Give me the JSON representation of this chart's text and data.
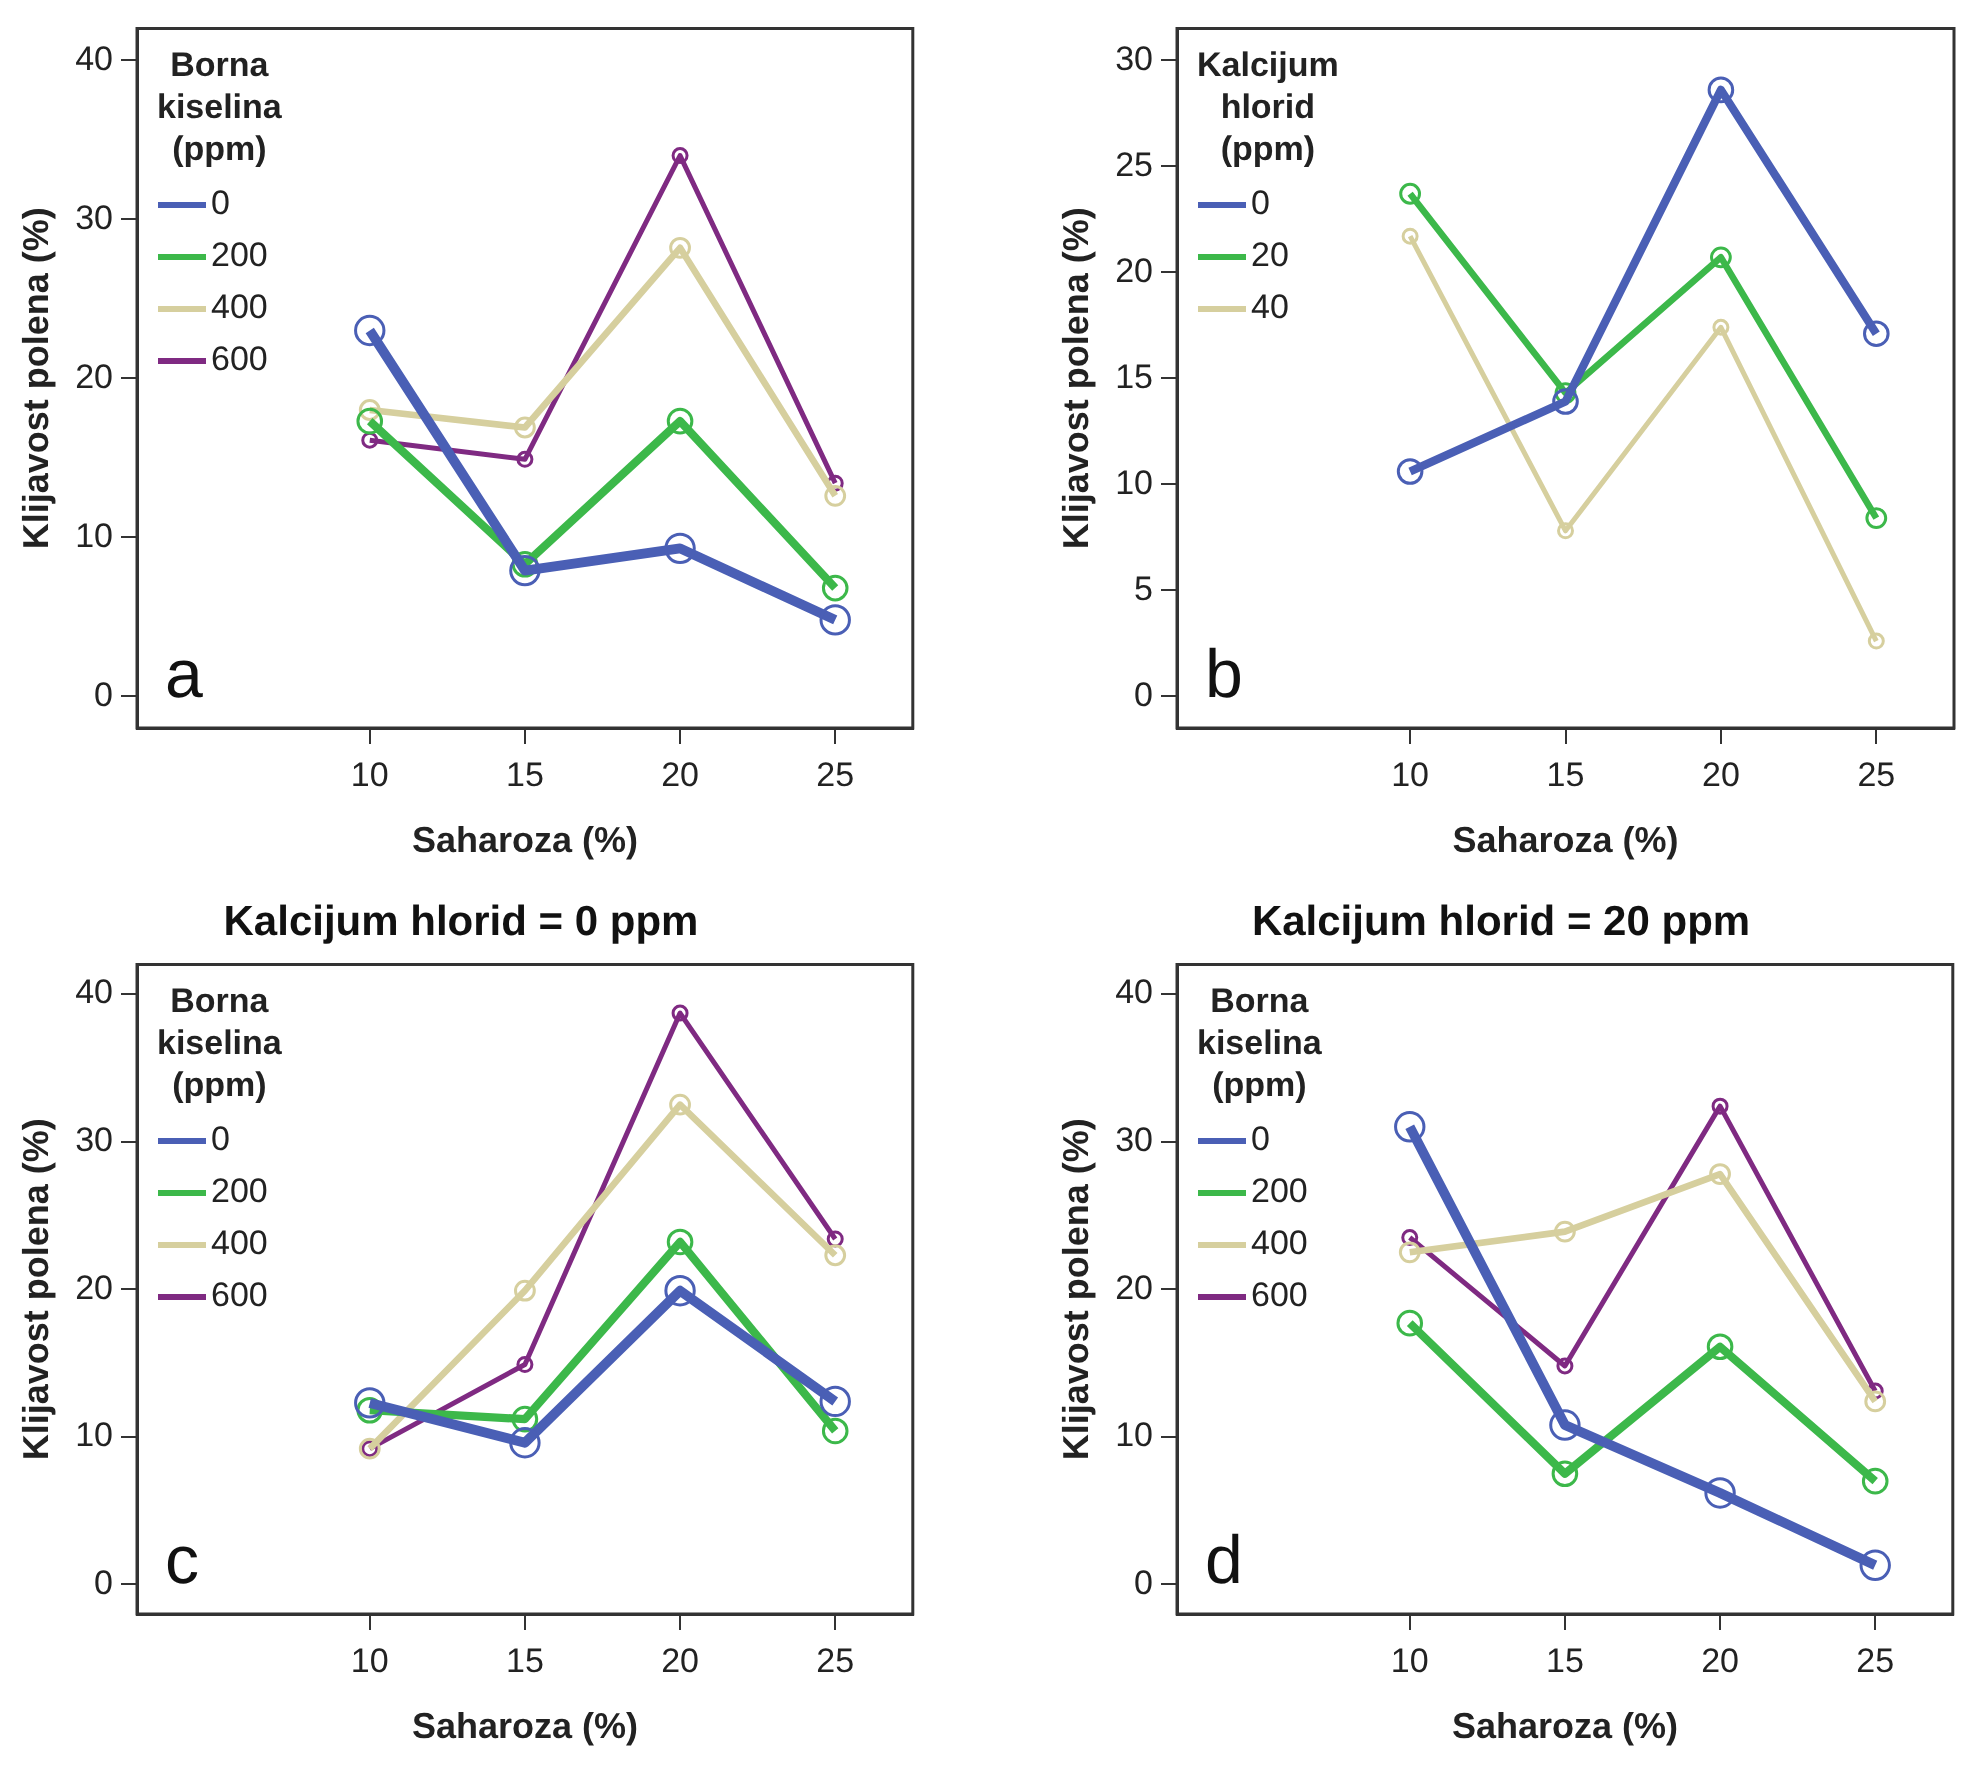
{
  "chart_data": [
    {
      "type": "line",
      "xlabel": "Saharoza (%)",
      "ylabel": "Klijavost polena (%)",
      "legend_title": "Borna\nkiselina\n(ppm)",
      "legend": "top left",
      "marker": "circle",
      "grid": false,
      "annotations": [
        "a"
      ],
      "x": [
        10,
        15,
        20,
        25
      ],
      "xlim": [
        2.5,
        27.5
      ],
      "xticks": [
        10,
        15,
        20,
        25
      ],
      "ylim": [
        -2,
        42
      ],
      "yticks": [
        0,
        10,
        20,
        30,
        40
      ],
      "series": [
        {
          "name": "0",
          "color": "#4a5fb5",
          "values": [
            23,
            7.9,
            9.3,
            4.8
          ]
        },
        {
          "name": "200",
          "color": "#3cb84a",
          "values": [
            17.3,
            8.3,
            17.3,
            6.8
          ]
        },
        {
          "name": "400",
          "color": "#d6cf9e",
          "values": [
            18,
            16.9,
            28.2,
            12.6
          ]
        },
        {
          "name": "600",
          "color": "#7f2a82",
          "values": [
            16.1,
            14.9,
            34,
            13.4
          ]
        }
      ]
    },
    {
      "type": "line",
      "xlabel": "Saharoza (%)",
      "ylabel": "Klijavost polena (%)",
      "legend_title": "Kalcijum\nhlorid\n(ppm)",
      "legend": "top left",
      "marker": "circle",
      "grid": false,
      "annotations": [
        "b"
      ],
      "x": [
        10,
        15,
        20,
        25
      ],
      "xlim": [
        2.5,
        27.5
      ],
      "xticks": [
        10,
        15,
        20,
        25
      ],
      "ylim": [
        -1.5,
        31.5
      ],
      "yticks": [
        0,
        5,
        10,
        15,
        20,
        25,
        30
      ],
      "series": [
        {
          "name": "0",
          "color": "#4a5fb5",
          "values": [
            10.6,
            13.9,
            28.6,
            17.1
          ]
        },
        {
          "name": "20",
          "color": "#3cb84a",
          "values": [
            23.7,
            14.3,
            20.7,
            8.4
          ]
        },
        {
          "name": "40",
          "color": "#d6cf9e",
          "values": [
            21.7,
            7.8,
            17.4,
            2.6
          ]
        }
      ]
    },
    {
      "type": "line",
      "title": "Kalcijum hlorid = 0 ppm",
      "xlabel": "Saharoza (%)",
      "ylabel": "Klijavost polena (%)",
      "legend_title": "Borna\nkiselina\n(ppm)",
      "legend": "top left",
      "marker": "circle",
      "grid": false,
      "annotations": [
        "c"
      ],
      "x": [
        10,
        15,
        20,
        25
      ],
      "xlim": [
        2.5,
        27.5
      ],
      "xticks": [
        10,
        15,
        20,
        25
      ],
      "ylim": [
        -2,
        42
      ],
      "yticks": [
        0,
        10,
        20,
        30,
        40
      ],
      "series": [
        {
          "name": "0",
          "color": "#4a5fb5",
          "values": [
            12.3,
            9.6,
            19.9,
            12.4
          ]
        },
        {
          "name": "200",
          "color": "#3cb84a",
          "values": [
            11.8,
            11.2,
            23.2,
            10.4
          ]
        },
        {
          "name": "400",
          "color": "#d6cf9e",
          "values": [
            9.2,
            19.9,
            32.5,
            22.3
          ]
        },
        {
          "name": "600",
          "color": "#7f2a82",
          "values": [
            9.2,
            14.9,
            38.7,
            23.4
          ]
        }
      ]
    },
    {
      "type": "line",
      "title": "Kalcijum hlorid = 20 ppm",
      "xlabel": "Saharoza (%)",
      "ylabel": "Klijavost polena (%)",
      "legend_title": "Borna\nkiselina\n(ppm)",
      "legend": "top left",
      "marker": "circle",
      "grid": false,
      "annotations": [
        "d"
      ],
      "x": [
        10,
        15,
        20,
        25
      ],
      "xlim": [
        2.5,
        27.5
      ],
      "xticks": [
        10,
        15,
        20,
        25
      ],
      "ylim": [
        -2,
        42
      ],
      "yticks": [
        0,
        10,
        20,
        30,
        40
      ],
      "series": [
        {
          "name": "0",
          "color": "#4a5fb5",
          "values": [
            31,
            10.8,
            6.2,
            1.3
          ]
        },
        {
          "name": "200",
          "color": "#3cb84a",
          "values": [
            17.7,
            7.5,
            16.1,
            7
          ]
        },
        {
          "name": "400",
          "color": "#d6cf9e",
          "values": [
            22.5,
            23.9,
            27.8,
            12.4
          ]
        },
        {
          "name": "600",
          "color": "#7f2a82",
          "values": [
            23.5,
            14.8,
            32.4,
            13.1
          ]
        }
      ]
    }
  ]
}
